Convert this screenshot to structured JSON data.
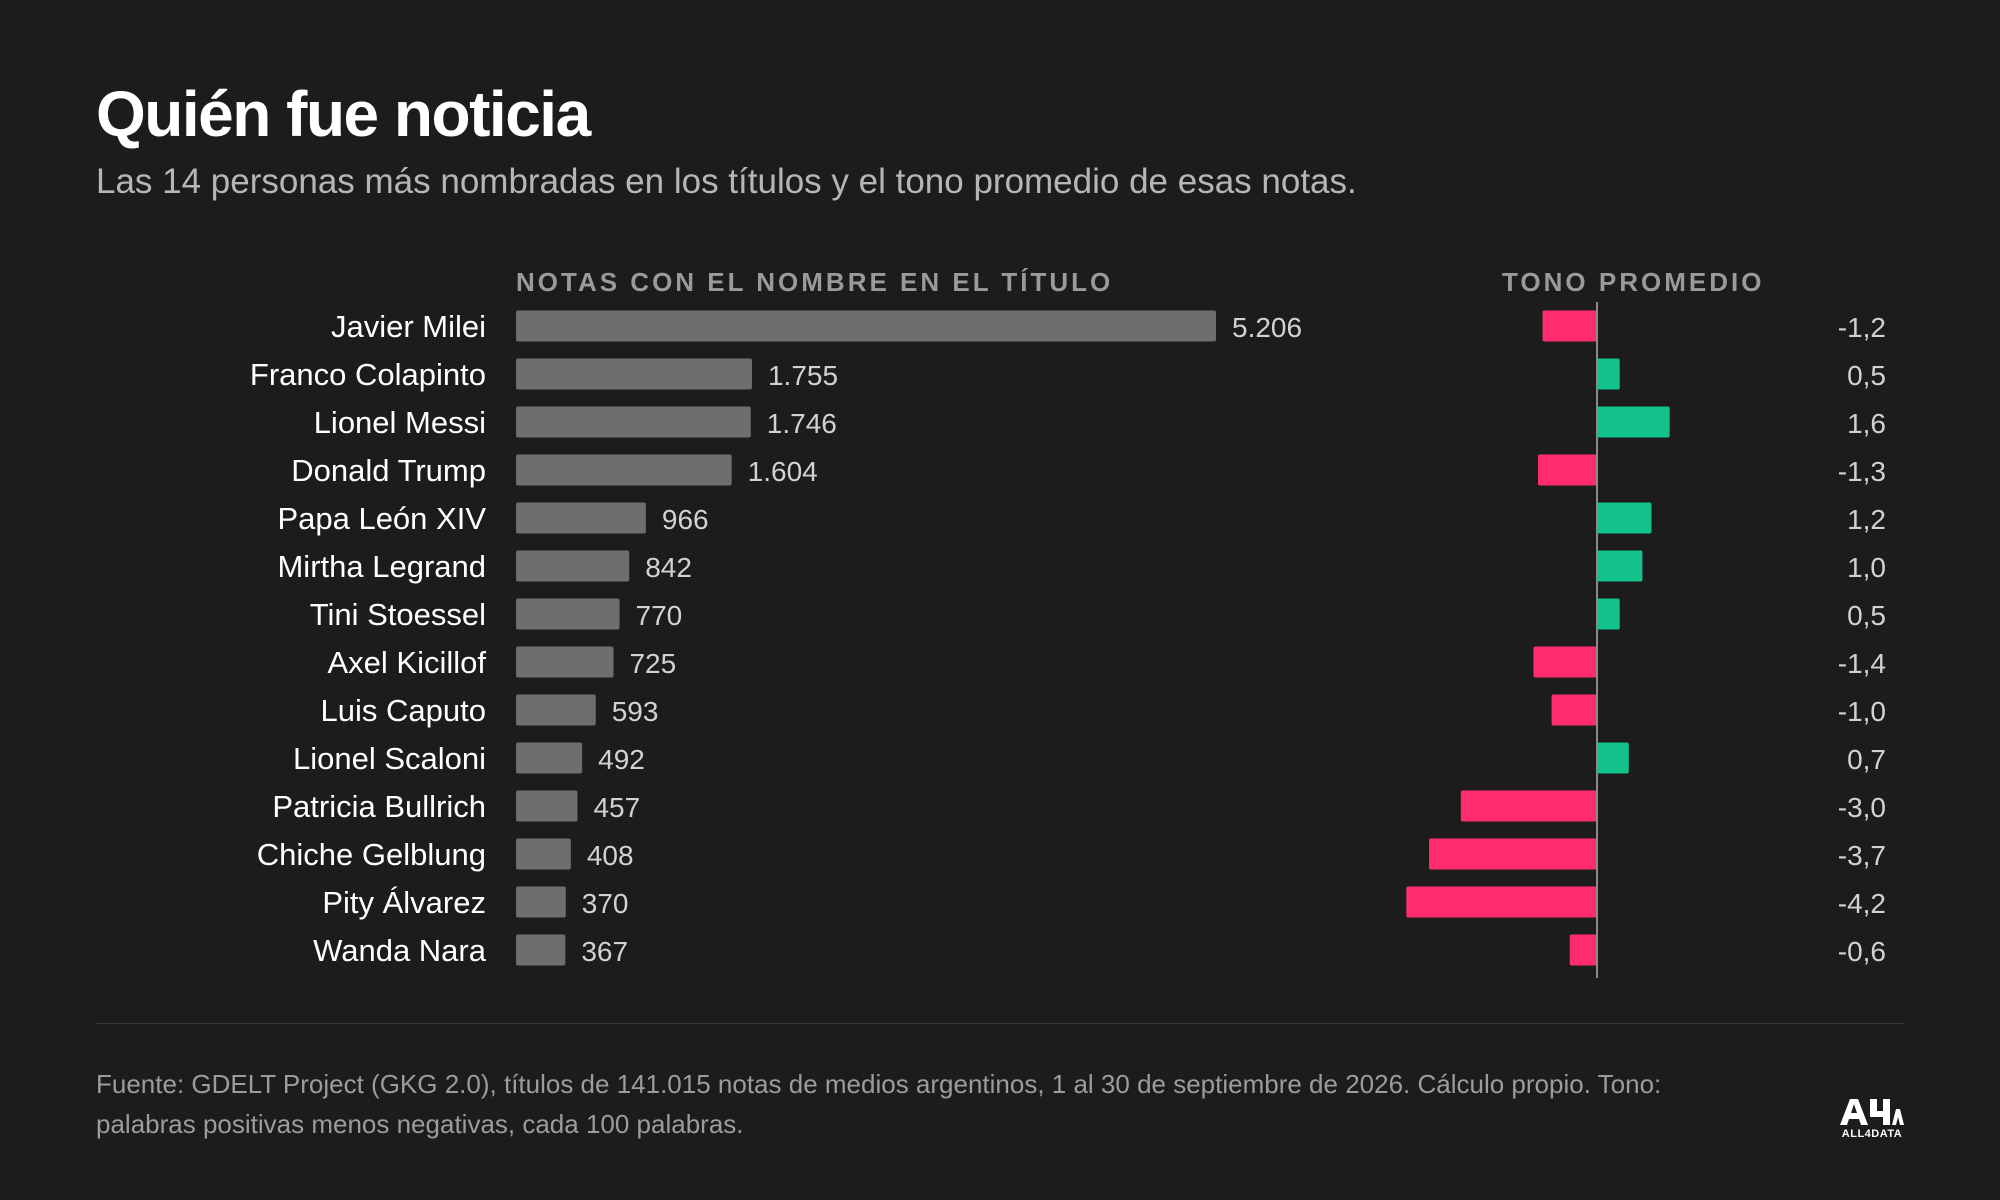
{
  "header": {
    "title": "Quién fue noticia",
    "subtitle": "Las 14 personas más nombradas en los títulos y el tono promedio de esas notas."
  },
  "columns": {
    "count_label": "NOTAS CON EL NOMBRE EN EL TÍTULO",
    "tone_label": "TONO PROMEDIO"
  },
  "chart_data": {
    "type": "bar",
    "title": "Quién fue noticia",
    "categories": [
      "Javier Milei",
      "Franco Colapinto",
      "Lionel Messi",
      "Donald Trump",
      "Papa León XIV",
      "Mirtha Legrand",
      "Tini Stoessel",
      "Axel Kicillof",
      "Luis Caputo",
      "Lionel Scaloni",
      "Patricia Bullrich",
      "Chiche Gelblung",
      "Pity Álvarez",
      "Wanda Nara"
    ],
    "series": [
      {
        "name": "NOTAS CON EL NOMBRE EN EL TÍTULO",
        "values": [
          5206,
          1755,
          1746,
          1604,
          966,
          842,
          770,
          725,
          593,
          492,
          457,
          408,
          370,
          367
        ],
        "labels": [
          "5.206",
          "1.755",
          "1.746",
          "1.604",
          "966",
          "842",
          "770",
          "725",
          "593",
          "492",
          "457",
          "408",
          "370",
          "367"
        ]
      },
      {
        "name": "TONO PROMEDIO",
        "values": [
          -1.2,
          0.5,
          1.6,
          -1.3,
          1.2,
          1.0,
          0.5,
          -1.4,
          -1.0,
          0.7,
          -3.0,
          -3.7,
          -4.2,
          -0.6
        ],
        "labels": [
          "-1,2",
          "0,5",
          "1,6",
          "-1,3",
          "1,2",
          "1,0",
          "0,5",
          "-1,4",
          "-1,0",
          "0,7",
          "-3,0",
          "-3,7",
          "-4,2",
          "-0,6"
        ]
      }
    ],
    "colors": {
      "count_bar": "#6e6e6e",
      "tone_positive": "#13c28a",
      "tone_negative": "#ff2d6e",
      "zero_line": "#8a8a8a"
    },
    "grid": false,
    "legend": "none"
  },
  "footer": {
    "source": "Fuente: GDELT Project (GKG 2.0), títulos de 141.015 notas de medios argentinos, 1 al 30 de septiembre de 2026. Cálculo propio. Tono: palabras positivas menos negativas, cada 100 palabras.",
    "logo_text": "ALL4DATA"
  }
}
